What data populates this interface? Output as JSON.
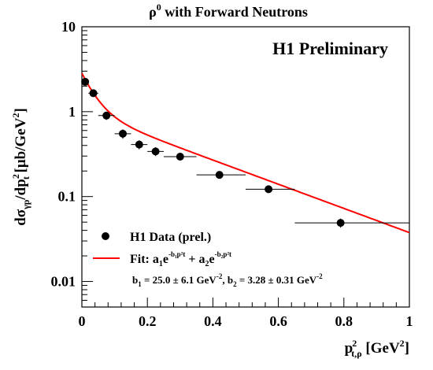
{
  "chart_data": {
    "type": "scatter",
    "title": "ρ0 with Forward Neutrons",
    "title_parts": {
      "base": "ρ",
      "sup": "0",
      "rest": " with Forward Neutrons"
    },
    "annotation": "H1 Preliminary",
    "xlabel": "p²t,ρ [GeV²]",
    "ylabel": "dσγp/dp²t [μb/GeV²]",
    "xlim": [
      0,
      1
    ],
    "ylim": [
      0.005,
      10
    ],
    "yscale": "log",
    "x_ticks": [
      "0",
      "0.2",
      "0.4",
      "0.6",
      "0.8",
      "1"
    ],
    "y_ticks": [
      {
        "value": 10,
        "label": "10"
      },
      {
        "value": 1,
        "label": "1"
      },
      {
        "value": 0.1,
        "label": "0.1"
      },
      {
        "value": 0.01,
        "label": "0.01"
      }
    ],
    "grid": false,
    "legend_position": "bottom-left",
    "series": [
      {
        "name": "H1 Data (prel.)",
        "type": "scatter",
        "color": "#000000",
        "points": [
          {
            "x": 0.01,
            "y": 2.25,
            "xlo": 0.0,
            "xhi": 0.02,
            "ylo": 2.05,
            "yhi": 2.45
          },
          {
            "x": 0.035,
            "y": 1.65,
            "xlo": 0.02,
            "xhi": 0.05,
            "ylo": 1.5,
            "yhi": 1.8
          },
          {
            "x": 0.075,
            "y": 0.9,
            "xlo": 0.05,
            "xhi": 0.1,
            "ylo": 0.8,
            "yhi": 1.0
          },
          {
            "x": 0.125,
            "y": 0.55,
            "xlo": 0.1,
            "xhi": 0.15,
            "ylo": 0.48,
            "yhi": 0.62
          },
          {
            "x": 0.175,
            "y": 0.41,
            "xlo": 0.15,
            "xhi": 0.2,
            "ylo": 0.36,
            "yhi": 0.46
          },
          {
            "x": 0.225,
            "y": 0.34,
            "xlo": 0.2,
            "xhi": 0.25,
            "ylo": 0.3,
            "yhi": 0.38
          },
          {
            "x": 0.3,
            "y": 0.295,
            "xlo": 0.25,
            "xhi": 0.35,
            "ylo": 0.27,
            "yhi": 0.32
          },
          {
            "x": 0.42,
            "y": 0.18,
            "xlo": 0.35,
            "xhi": 0.5,
            "ylo": 0.165,
            "yhi": 0.195
          },
          {
            "x": 0.57,
            "y": 0.122,
            "xlo": 0.5,
            "xhi": 0.65,
            "ylo": 0.112,
            "yhi": 0.132
          },
          {
            "x": 0.79,
            "y": 0.049,
            "xlo": 0.65,
            "xhi": 1.0,
            "ylo": 0.043,
            "yhi": 0.055
          }
        ]
      },
      {
        "name": "Fit",
        "type": "line",
        "color": "#ff0000",
        "model": "a1*exp(-b1*x) + a2*exp(-b2*x)",
        "params": {
          "a1": 1.84,
          "b1": 25.0,
          "a2": 1.0,
          "b2": 3.28
        },
        "x_range": [
          0,
          1
        ]
      }
    ],
    "legend": {
      "data_label": "H1 Data (prel.)",
      "fit_label": "Fit: a₁e^(-b₁p²t) + a₂e^(-b₂p²t)",
      "fit_parts": {
        "prefix": "Fit: a",
        "s1": "1",
        "e": "e",
        "exp1": "-b₁p²t",
        "plus": " + a",
        "s2": "2",
        "exp2": "-b₂p²t"
      }
    },
    "fit_params_text": "b1 = 25.0  ± 6.1 GeV-2,    b2 = 3.28  ± 0.31  GeV-2",
    "fit_params": {
      "b1": {
        "value": "25.0",
        "error": "6.1",
        "unit": "GeV-2"
      },
      "b2": {
        "value": "3.28",
        "error": "0.31",
        "unit": "GeV-2"
      }
    }
  }
}
